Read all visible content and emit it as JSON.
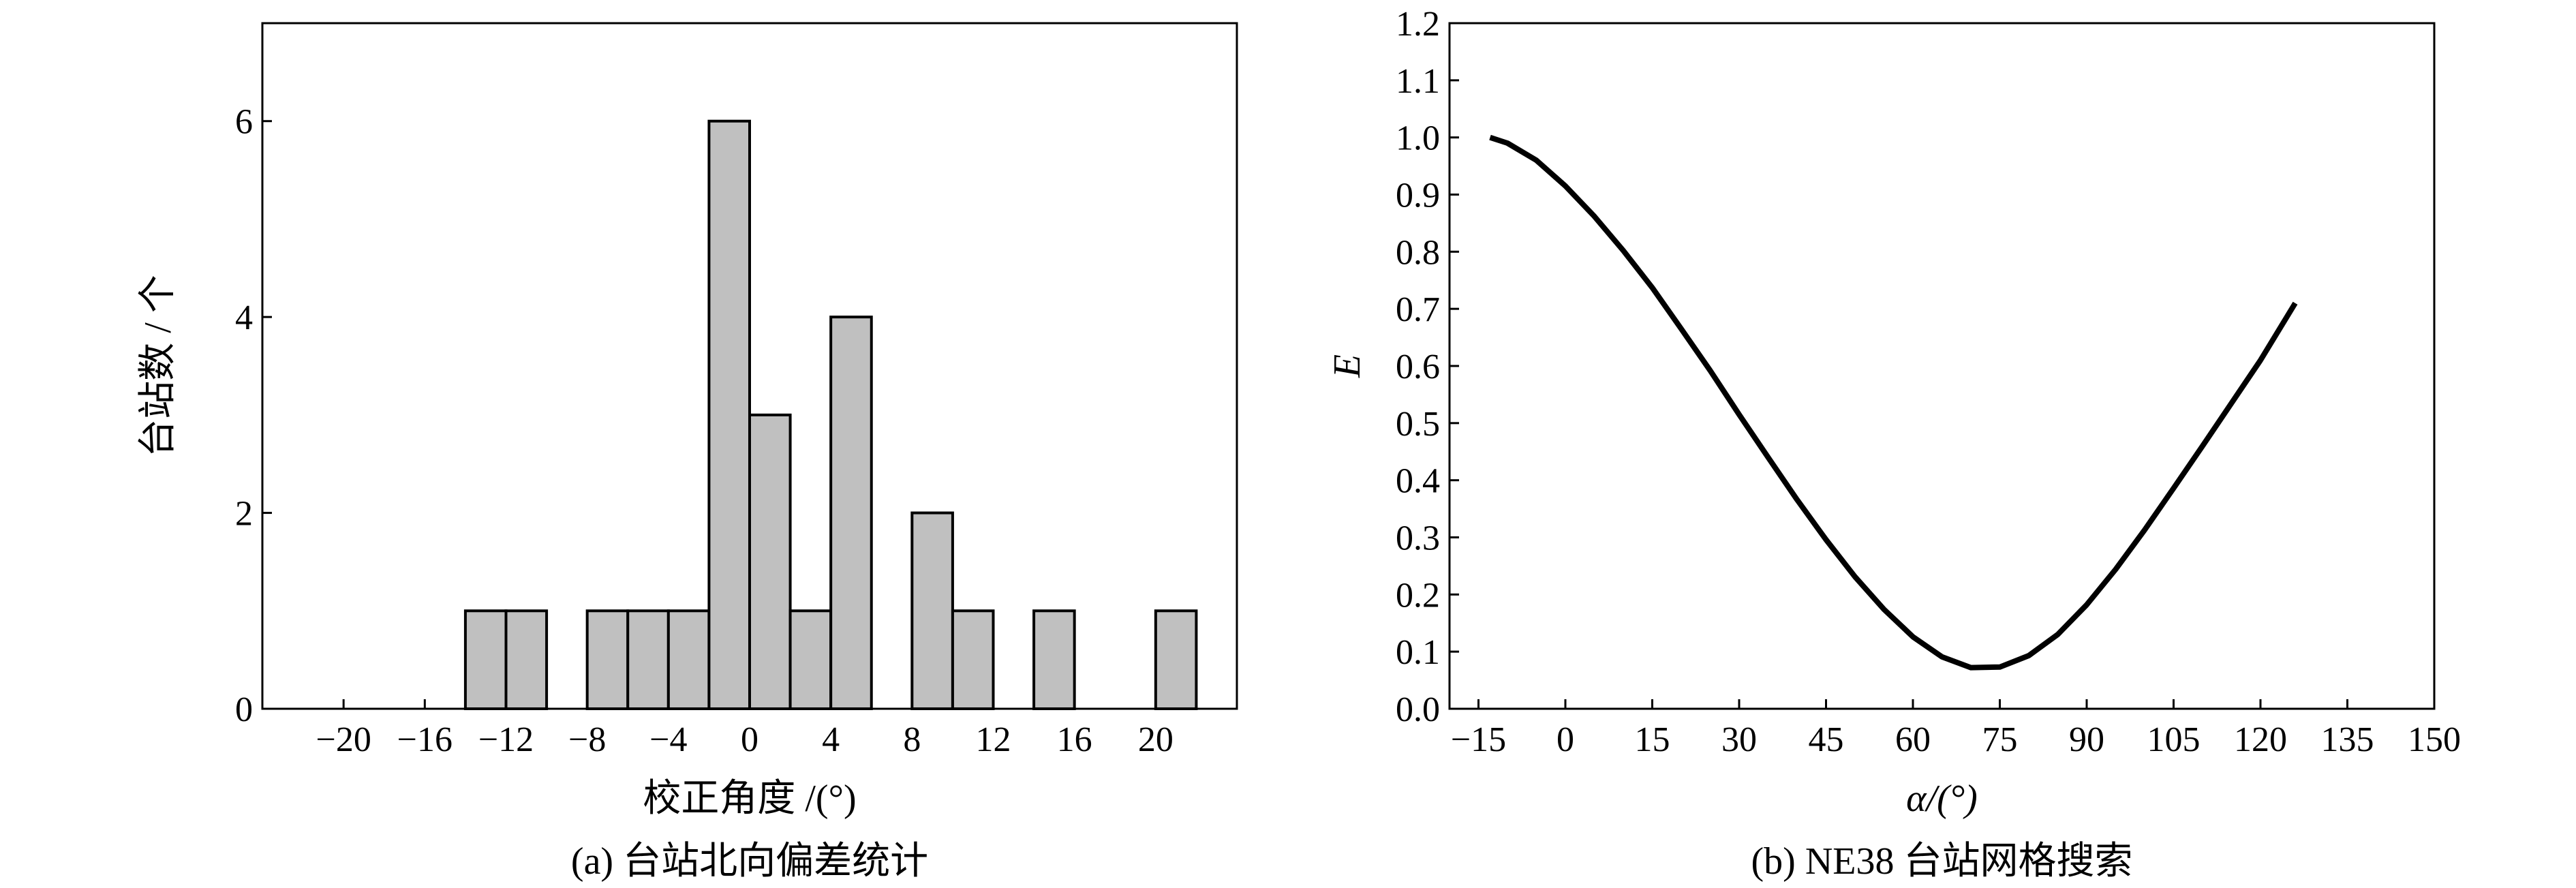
{
  "chart_data": [
    {
      "type": "bar",
      "caption": "(a) 台站北向偏差统计",
      "xlabel": "校正角度 /(°)",
      "ylabel": "台站数 / 个",
      "xlim": [
        -24,
        24
      ],
      "ylim": [
        0,
        7
      ],
      "x_ticks": [
        -20,
        -16,
        -12,
        -8,
        -4,
        0,
        4,
        8,
        12,
        16,
        20
      ],
      "x_tick_labels": [
        "−20",
        "−16",
        "−12",
        "−8",
        "−4",
        "0",
        "4",
        "8",
        "12",
        "16",
        "20"
      ],
      "y_ticks": [
        0,
        2,
        4,
        6
      ],
      "y_tick_labels": [
        "0",
        "2",
        "4",
        "6"
      ],
      "bin_width": 2,
      "bins": [
        {
          "center": -13,
          "count": 1
        },
        {
          "center": -11,
          "count": 1
        },
        {
          "center": -7,
          "count": 1
        },
        {
          "center": -5,
          "count": 1
        },
        {
          "center": -3,
          "count": 1
        },
        {
          "center": -1,
          "count": 6
        },
        {
          "center": 1,
          "count": 3
        },
        {
          "center": 3,
          "count": 1
        },
        {
          "center": 5,
          "count": 4
        },
        {
          "center": 9,
          "count": 2
        },
        {
          "center": 11,
          "count": 1
        },
        {
          "center": 15,
          "count": 1
        },
        {
          "center": 21,
          "count": 1
        }
      ],
      "bar_color": "#c0c0c0",
      "grid": false
    },
    {
      "type": "line",
      "caption": "(b) NE38 台站网格搜索",
      "xlabel": "α/(°)",
      "ylabel": "E",
      "xlim": [
        -20,
        150
      ],
      "ylim": [
        0,
        1.2
      ],
      "x_ticks": [
        -15,
        0,
        15,
        30,
        45,
        60,
        75,
        90,
        105,
        120,
        135,
        150
      ],
      "x_tick_labels": [
        "−15",
        "0",
        "15",
        "30",
        "45",
        "60",
        "75",
        "90",
        "105",
        "120",
        "135",
        "150"
      ],
      "y_ticks": [
        0.0,
        0.1,
        0.2,
        0.3,
        0.4,
        0.5,
        0.6,
        0.7,
        0.8,
        0.9,
        1.0,
        1.1,
        1.2
      ],
      "y_tick_labels": [
        "0.0",
        "0.1",
        "0.2",
        "0.3",
        "0.4",
        "0.5",
        "0.6",
        "0.7",
        "0.8",
        "0.9",
        "1.0",
        "1.1",
        "1.2"
      ],
      "series": [
        {
          "x": [
            -13,
            -10,
            -5,
            0,
            5,
            10,
            15,
            20,
            25,
            30,
            35,
            40,
            45,
            50,
            55,
            60,
            65,
            70,
            75,
            80,
            85,
            90,
            95,
            100,
            105,
            110,
            115,
            120,
            126
          ],
          "y": [
            1.0,
            0.99,
            0.96,
            0.915,
            0.862,
            0.802,
            0.737,
            0.665,
            0.592,
            0.515,
            0.44,
            0.366,
            0.296,
            0.231,
            0.174,
            0.126,
            0.091,
            0.072,
            0.073,
            0.093,
            0.13,
            0.182,
            0.244,
            0.313,
            0.386,
            0.46,
            0.535,
            0.61,
            0.71
          ]
        }
      ],
      "line_color": "#000000",
      "grid": false
    }
  ]
}
